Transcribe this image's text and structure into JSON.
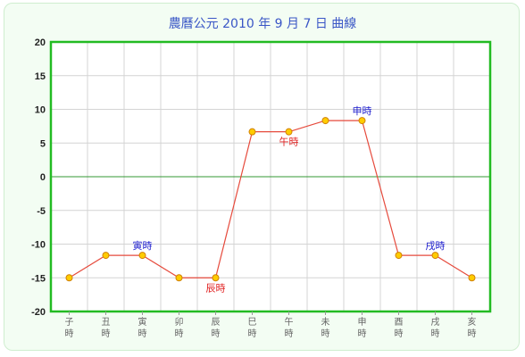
{
  "chart_data": {
    "type": "line",
    "title": "農曆公元 2010 年 9 月  7 日 曲線",
    "categories": [
      "子時",
      "丑時",
      "寅時",
      "卯時",
      "辰時",
      "巳時",
      "午時",
      "未時",
      "申時",
      "酉時",
      "戌時",
      "亥時"
    ],
    "x_tick_top": [
      "子",
      "丑",
      "寅",
      "卯",
      "辰",
      "巳",
      "午",
      "未",
      "申",
      "酉",
      "戌",
      "亥"
    ],
    "x_tick_bottom": "時",
    "series": [
      {
        "values": [
          -15,
          -11.67,
          -11.67,
          -15,
          -15,
          6.67,
          6.67,
          8.33,
          8.33,
          -11.67,
          -11.67,
          -15
        ]
      }
    ],
    "ylim": [
      -20,
      20
    ],
    "y_ticks": [
      20,
      15,
      10,
      5,
      0,
      -5,
      -10,
      -15,
      -20
    ],
    "grid": true,
    "annotations": [
      {
        "index": 2,
        "text": "寅時",
        "position": "above",
        "color": "#1a1acc"
      },
      {
        "index": 4,
        "text": "辰時",
        "position": "below",
        "color": "#e02020"
      },
      {
        "index": 6,
        "text": "午時",
        "position": "below",
        "color": "#e02020"
      },
      {
        "index": 8,
        "text": "申時",
        "position": "above",
        "color": "#1a1acc"
      },
      {
        "index": 10,
        "text": "戌時",
        "position": "above",
        "color": "#1a1acc"
      }
    ],
    "colors": {
      "line": "#e64a3c",
      "marker_fill": "#ffcc00",
      "marker_stroke": "#d08000",
      "plot_border": "#22bb22",
      "zero_line": "#339933",
      "grid": "#d4d4d4"
    }
  }
}
